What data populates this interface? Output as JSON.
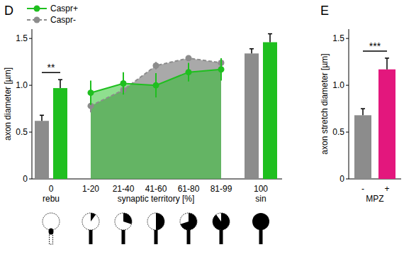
{
  "chart_data": [
    {
      "type": "line",
      "title": "D",
      "legend": "upper left",
      "y_label": "axon diameter [µm]",
      "categories": [
        "0",
        "1-20",
        "21-40",
        "41-60",
        "61-80",
        "81-99",
        "100"
      ],
      "category_groups": [
        {
          "label": "rebu",
          "from": 0,
          "to": 0
        },
        {
          "label": "synaptic territory [%]",
          "from": 1,
          "to": 5
        },
        {
          "label": "sin",
          "from": 6,
          "to": 6
        }
      ],
      "ylim": [
        0,
        1.6
      ],
      "yticks": [
        0,
        0.5,
        {
          "value": 1,
          "label": "1.0"
        },
        1.5
      ],
      "series": [
        {
          "name": "Caspr+",
          "color": "#1fbf1f",
          "marker": "circle",
          "line_style": "solid",
          "values": [
            0.97,
            0.92,
            1.02,
            1.0,
            1.14,
            1.17,
            1.46
          ],
          "errors": [
            0.09,
            0.13,
            0.12,
            0.13,
            0.1,
            0.12,
            0.09
          ]
        },
        {
          "name": "Caspr-",
          "color": "#8c8c8c",
          "marker": "circle",
          "line_style": "dashed",
          "values": [
            0.62,
            0.78,
            0.95,
            1.21,
            1.29,
            1.24,
            1.34
          ],
          "errors": [
            0.06,
            0.07,
            0.03,
            0.04,
            0.03,
            0.04,
            0.05
          ]
        }
      ],
      "annotations": [
        {
          "text": "**",
          "category": 0
        }
      ]
    },
    {
      "type": "bar",
      "title": "E",
      "y_label": "axon stretch diameter [µm]",
      "x_label": "MPZ",
      "categories": [
        "-",
        "+"
      ],
      "values": [
        0.68,
        1.17
      ],
      "errors": [
        0.07,
        0.12
      ],
      "colors": [
        "#8c8c8c",
        "#e3177d"
      ],
      "ylim": [
        0,
        1.6
      ],
      "yticks": [
        0,
        0.5,
        {
          "value": 1,
          "label": "1.0"
        },
        1.5
      ],
      "annotations": [
        {
          "text": "***",
          "from": 0,
          "to": 1
        }
      ]
    }
  ]
}
